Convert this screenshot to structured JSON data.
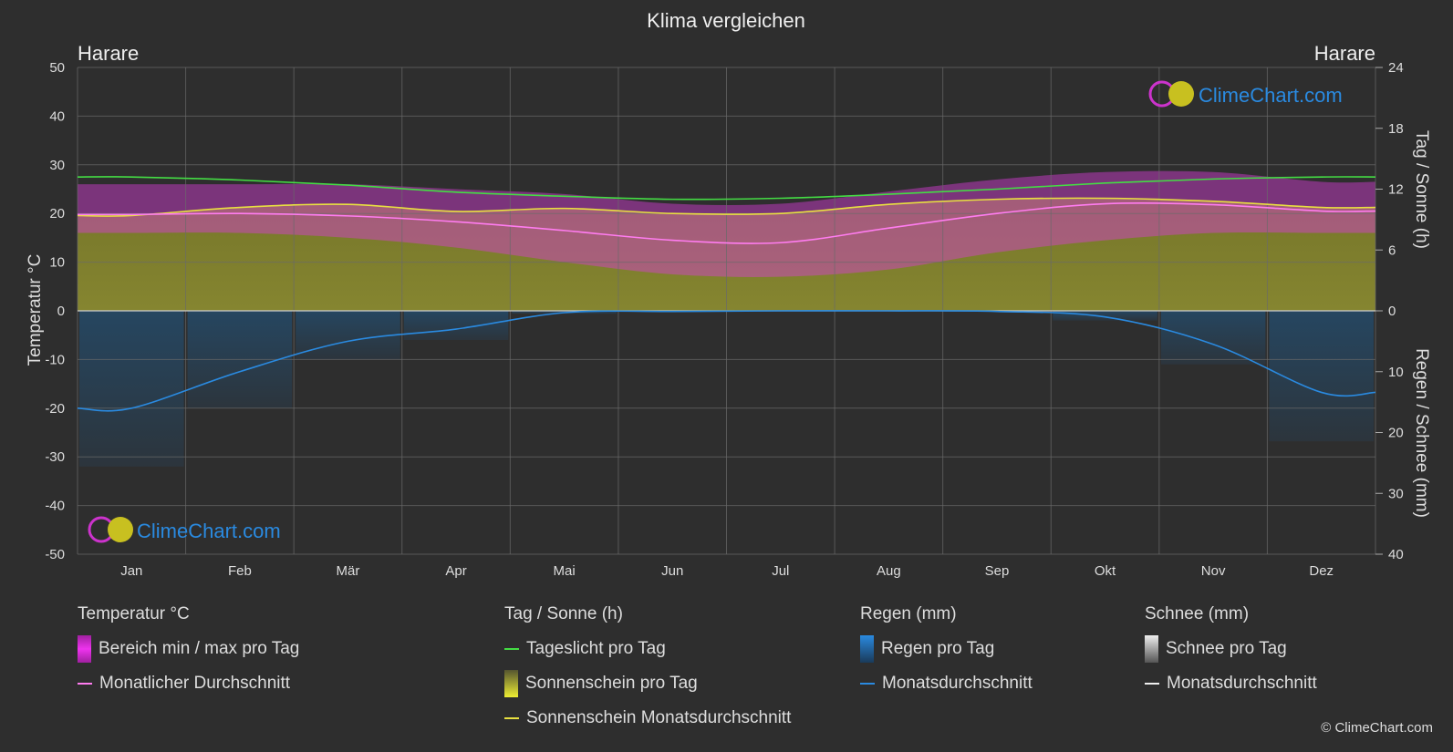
{
  "title": "Klima vergleichen",
  "location_left": "Harare",
  "location_right": "Harare",
  "brand": "ClimeChart.com",
  "copyright": "© ClimeChart.com",
  "colors": {
    "background": "#2e2e2e",
    "temp_range": "#d93cd9",
    "temp_avg": "#ff7cf0",
    "daylight": "#44dd44",
    "sunshine_fill": "#b5b530",
    "sunshine_avg": "#e8e040",
    "rain": "#2277bb",
    "rain_avg": "#2a8ae0",
    "snow": "#dddddd",
    "brand_text": "#2a8ae0"
  },
  "chart_data": {
    "type": "line",
    "categories": [
      "Jan",
      "Feb",
      "Mär",
      "Apr",
      "Mai",
      "Jun",
      "Jul",
      "Aug",
      "Sep",
      "Okt",
      "Nov",
      "Dez"
    ],
    "axes": {
      "left": {
        "label": "Temperatur °C",
        "min": -50,
        "max": 50,
        "ticks": [
          50,
          40,
          30,
          20,
          10,
          0,
          -10,
          -20,
          -30,
          -40,
          -50
        ]
      },
      "right_top": {
        "label": "Tag / Sonne (h)",
        "min": 0,
        "max": 24,
        "ticks": [
          24,
          18,
          12,
          6,
          0
        ]
      },
      "right_bottom": {
        "label": "Regen / Schnee (mm)",
        "min": 0,
        "max": 40,
        "ticks": [
          0,
          10,
          20,
          30,
          40
        ]
      }
    },
    "grid": true,
    "series": [
      {
        "name": "Bereich min / max pro Tag",
        "kind": "band",
        "unit": "°C",
        "min": [
          16.0,
          16.0,
          15.0,
          13.0,
          10.0,
          7.5,
          7.0,
          8.5,
          12.0,
          14.5,
          16.0,
          16.0
        ],
        "max": [
          26.0,
          26.0,
          26.0,
          25.0,
          24.0,
          22.0,
          22.0,
          24.5,
          27.0,
          28.5,
          28.5,
          26.5
        ]
      },
      {
        "name": "Monatlicher Durchschnitt",
        "kind": "line",
        "unit": "°C",
        "values": [
          19.8,
          20.0,
          19.5,
          18.3,
          16.5,
          14.5,
          14.0,
          17.0,
          20.0,
          22.0,
          21.8,
          20.5
        ]
      },
      {
        "name": "Tageslicht pro Tag",
        "kind": "line",
        "unit": "h",
        "values": [
          13.2,
          12.9,
          12.4,
          11.7,
          11.3,
          11.0,
          11.1,
          11.5,
          12.0,
          12.6,
          13.0,
          13.2
        ]
      },
      {
        "name": "Sonnenschein pro Tag",
        "kind": "area",
        "unit": "h",
        "values": [
          9.4,
          10.2,
          10.5,
          9.8,
          10.1,
          9.6,
          9.6,
          10.5,
          11.0,
          11.1,
          10.8,
          10.2
        ]
      },
      {
        "name": "Sonnenschein Monatsdurchschnitt",
        "kind": "line",
        "unit": "h",
        "values": [
          9.4,
          10.2,
          10.5,
          9.8,
          10.1,
          9.6,
          9.6,
          10.5,
          11.0,
          11.1,
          10.8,
          10.2
        ]
      },
      {
        "name": "Regen pro Tag",
        "kind": "bars",
        "unit": "mm",
        "values": [
          16.0,
          10.0,
          5.0,
          3.0,
          0.3,
          0.1,
          0.0,
          0.0,
          0.1,
          1.0,
          5.5,
          13.4
        ]
      },
      {
        "name": "Monatsdurchschnitt",
        "kind": "line",
        "unit": "mm",
        "values": [
          16.0,
          10.0,
          5.0,
          3.0,
          0.3,
          0.1,
          0.0,
          0.0,
          0.1,
          1.0,
          5.5,
          13.4
        ]
      },
      {
        "name": "Schnee pro Tag",
        "kind": "bars",
        "unit": "mm",
        "values": [
          0,
          0,
          0,
          0,
          0,
          0,
          0,
          0,
          0,
          0,
          0,
          0
        ]
      }
    ]
  },
  "legend": {
    "temperature": {
      "heading": "Temperatur °C",
      "range": "Bereich min / max pro Tag",
      "avg": "Monatlicher Durchschnitt"
    },
    "sun": {
      "heading": "Tag / Sonne (h)",
      "daylight": "Tageslicht pro Tag",
      "sunshine": "Sonnenschein pro Tag",
      "sunshine_avg": "Sonnenschein Monatsdurchschnitt"
    },
    "rain": {
      "heading": "Regen (mm)",
      "rain": "Regen pro Tag",
      "avg": "Monatsdurchschnitt"
    },
    "snow": {
      "heading": "Schnee (mm)",
      "snow": "Schnee pro Tag",
      "avg": "Monatsdurchschnitt"
    }
  }
}
